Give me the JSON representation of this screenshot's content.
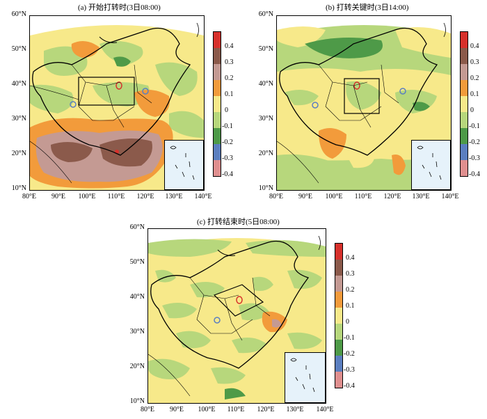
{
  "panels": [
    {
      "id": "a",
      "title": "(a) 开始打转时(3日08:00)"
    },
    {
      "id": "b",
      "title": "(b) 打转关键时(3日14:00)"
    },
    {
      "id": "c",
      "title": "(c) 打转结束时(5日08:00)"
    }
  ],
  "lat_labels": [
    "60°N",
    "50°N",
    "40°N",
    "30°N",
    "20°N",
    "10°N"
  ],
  "lon_labels": [
    "80°E",
    "90°E",
    "100°E",
    "110°E",
    "120°E",
    "130°E",
    "140°E"
  ],
  "colorbar": {
    "levels": [
      "0.4",
      "0.3",
      "0.2",
      "0.1",
      "0",
      "-0.1",
      "-0.2",
      "-0.3",
      "-0.4"
    ],
    "colors": [
      "#d7312c",
      "#8b5a4b",
      "#c49a93",
      "#f29b3b",
      "#f7e98a",
      "#b7d77c",
      "#4e9a48",
      "#5b7fc0",
      "#e08f8f"
    ]
  }
}
